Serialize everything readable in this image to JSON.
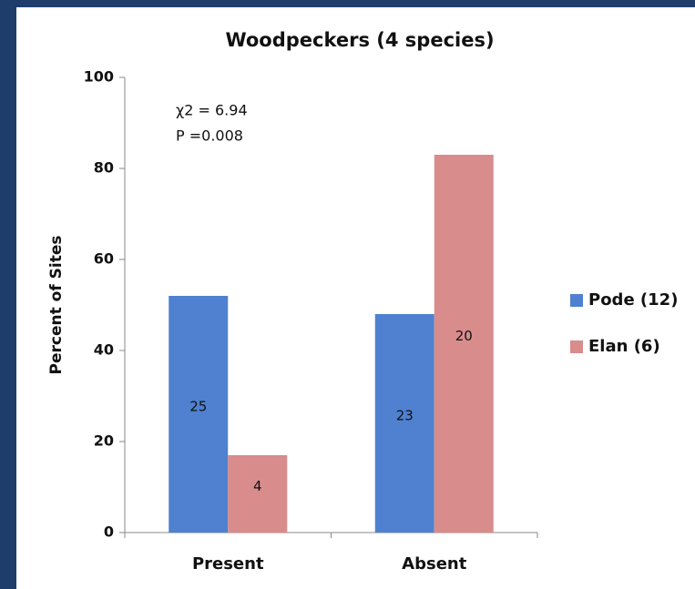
{
  "chart_data": {
    "type": "bar",
    "title": "Woodpeckers (4 species)",
    "ylabel": "Percent of Sites",
    "annotations": [
      "χ2 = 6.94",
      "P =0.008"
    ],
    "categories": [
      "Present",
      "Absent"
    ],
    "series": [
      {
        "name": "Pode (12)",
        "color": "#4f81d0",
        "values": [
          52,
          48
        ],
        "counts": [
          25,
          23
        ]
      },
      {
        "name": "Elan (6)",
        "color": "#d98c8c",
        "values": [
          17,
          83
        ],
        "counts": [
          4,
          20
        ]
      }
    ],
    "ylim": [
      0,
      100
    ],
    "yticks": [
      0,
      20,
      40,
      60,
      80,
      100
    ],
    "grid": false,
    "legend": "right"
  }
}
